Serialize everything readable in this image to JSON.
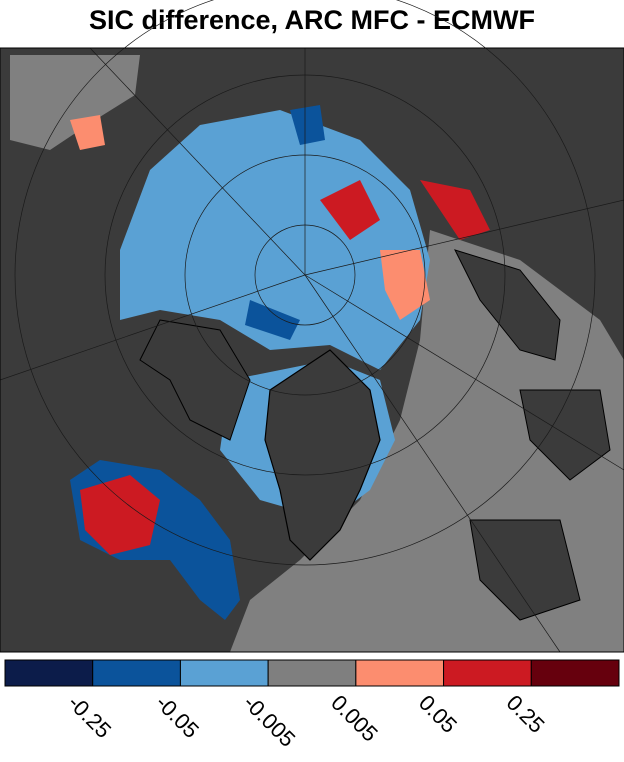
{
  "title": "SIC difference, ARC MFC - ECMWF",
  "colorbar": {
    "colors": [
      "#0c1c4a",
      "#0b539b",
      "#5aa1d4",
      "#7f7f7f",
      "#fc8d6f",
      "#cc1a22",
      "#66000d"
    ],
    "ticks": [
      -0.25,
      -0.05,
      -0.005,
      0.005,
      0.05,
      0.25
    ]
  }
}
